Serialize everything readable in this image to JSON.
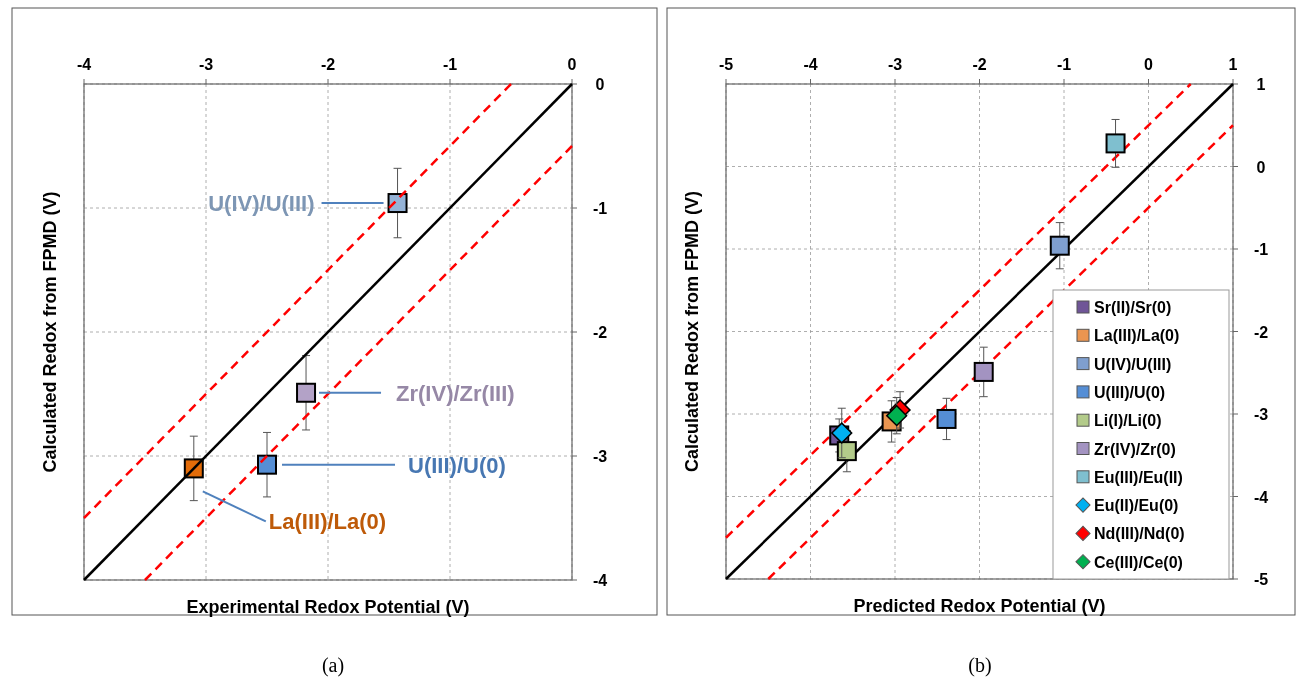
{
  "chart_data": [
    {
      "type": "scatter",
      "xlabel": "Experimental Redox Potential (V)",
      "ylabel": "Calculated Redox from FPMD (V)",
      "xlim": [
        -4,
        0
      ],
      "ylim": [
        -4,
        0
      ],
      "xticks": [
        -4,
        -3,
        -2,
        -1,
        0
      ],
      "yticks": [
        -4,
        -3,
        -2,
        -1,
        0
      ],
      "grid": true,
      "legend": false,
      "annotations": [
        "(a)"
      ],
      "series": [
        {
          "name": "U(IV)/U(III)",
          "color": "#95b3d7",
          "marker": "square",
          "x": [
            -1.43
          ],
          "values": [
            -0.96
          ],
          "errors": [
            0.28
          ]
        },
        {
          "name": "Zr(IV)/Zr(III)",
          "color": "#b3a2c7",
          "marker": "square",
          "x": [
            -2.18
          ],
          "values": [
            -2.49
          ],
          "errors": [
            0.3
          ]
        },
        {
          "name": "U(III)/U(0)",
          "color": "#558ed5",
          "marker": "square",
          "x": [
            -2.5
          ],
          "values": [
            -3.07
          ],
          "errors": [
            0.26
          ]
        },
        {
          "name": "La(III)/La(0)",
          "color": "#e36c09",
          "marker": "square",
          "x": [
            -3.1
          ],
          "values": [
            -3.1
          ],
          "errors": [
            0.26
          ]
        },
        {
          "type": "line",
          "color": "#000000",
          "line_style": "solid",
          "x": [
            -4,
            0
          ],
          "values": [
            -4,
            0
          ]
        },
        {
          "type": "line",
          "color": "#ff0000",
          "line_style": "dashed",
          "x": [
            -4,
            -0.5
          ],
          "values": [
            -3.5,
            0
          ]
        },
        {
          "type": "line",
          "color": "#ff0000",
          "line_style": "dashed",
          "x": [
            -3.5,
            0
          ],
          "values": [
            -4,
            -0.5
          ]
        }
      ]
    },
    {
      "type": "scatter",
      "xlabel": "Predicted Redox Potential (V)",
      "ylabel": "Calculated Redox from FPMD (V)",
      "xlim": [
        -5,
        1
      ],
      "ylim": [
        -5,
        1
      ],
      "xticks": [
        -5,
        -4,
        -3,
        -2,
        -1,
        0,
        1
      ],
      "yticks": [
        -5,
        -4,
        -3,
        -2,
        -1,
        0,
        1
      ],
      "grid": true,
      "legend": "bottom right",
      "annotations": [
        "(b)"
      ],
      "series": [
        {
          "type": "line",
          "color": "#000000",
          "line_style": "solid",
          "x": [
            -5,
            1
          ],
          "values": [
            -5,
            1
          ]
        },
        {
          "type": "line",
          "color": "#ff0000",
          "line_style": "dashed",
          "x": [
            -5,
            0.5
          ],
          "values": [
            -4.5,
            1
          ]
        },
        {
          "type": "line",
          "color": "#ff0000",
          "line_style": "dashed",
          "x": [
            -4.5,
            1
          ],
          "values": [
            -5,
            0.5
          ]
        },
        {
          "name": "Sr(II)/Sr(0)",
          "color": "#6f5597",
          "marker": "square",
          "x": [
            -3.66
          ],
          "values": [
            -3.26
          ],
          "errors": [
            0.2
          ]
        },
        {
          "name": "La(III)/La(0)",
          "color": "#ea9550",
          "marker": "square",
          "x": [
            -3.04
          ],
          "values": [
            -3.09
          ],
          "errors": [
            0.25
          ]
        },
        {
          "name": "U(IV)/U(III)",
          "color": "#7f9fcf",
          "marker": "square",
          "x": [
            -1.05
          ],
          "values": [
            -0.96
          ],
          "errors": [
            0.28
          ]
        },
        {
          "name": "U(III)/U(0)",
          "color": "#558ed5",
          "marker": "square",
          "x": [
            -2.39
          ],
          "values": [
            -3.06
          ],
          "errors": [
            0.25
          ]
        },
        {
          "name": "Li(I)/Li(0)",
          "color": "#b3cb8a",
          "marker": "square",
          "x": [
            -3.57
          ],
          "values": [
            -3.45
          ],
          "errors": [
            0.25
          ]
        },
        {
          "name": "Zr(IV)/Zr(0)",
          "color": "#a393c1",
          "marker": "square",
          "x": [
            -1.95
          ],
          "values": [
            -2.49
          ],
          "errors": [
            0.3
          ]
        },
        {
          "name": "Eu(III)/Eu(II)",
          "color": "#7fbfcf",
          "marker": "square",
          "x": [
            -0.39
          ],
          "values": [
            0.28
          ],
          "errors": [
            0.29
          ]
        },
        {
          "name": "Eu(II)/Eu(0)",
          "color": "#00b0f0",
          "marker": "diamond",
          "x": [
            -3.63
          ],
          "values": [
            -3.23
          ],
          "errors": [
            0.3
          ]
        },
        {
          "name": "Nd(III)/Nd(0)",
          "color": "#ff0000",
          "marker": "diamond",
          "x": [
            -2.94
          ],
          "values": [
            -2.95
          ],
          "errors": [
            0.22
          ]
        },
        {
          "name": "Ce(III)/Ce(0)",
          "color": "#00b050",
          "marker": "diamond",
          "x": [
            -2.98
          ],
          "values": [
            -3.02
          ],
          "errors": [
            0.22
          ]
        }
      ]
    }
  ]
}
